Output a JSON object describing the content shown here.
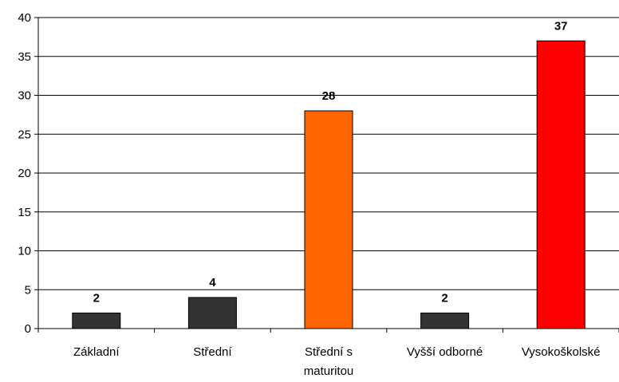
{
  "chart_data": {
    "type": "bar",
    "categories": [
      [
        "Základní"
      ],
      [
        "Střední"
      ],
      [
        "Střední s",
        "maturitou"
      ],
      [
        "Vyšší odborné"
      ],
      [
        "Vysokoškolské"
      ]
    ],
    "values": [
      2,
      4,
      28,
      2,
      37
    ],
    "bar_colors": [
      "#333333",
      "#333333",
      "#ff6600",
      "#333333",
      "#ff0000"
    ],
    "ylim": [
      0,
      40
    ],
    "yticks": [
      0,
      5,
      10,
      15,
      20,
      25,
      30,
      35,
      40
    ],
    "grid": true,
    "title": "",
    "xlabel": "",
    "ylabel": ""
  }
}
